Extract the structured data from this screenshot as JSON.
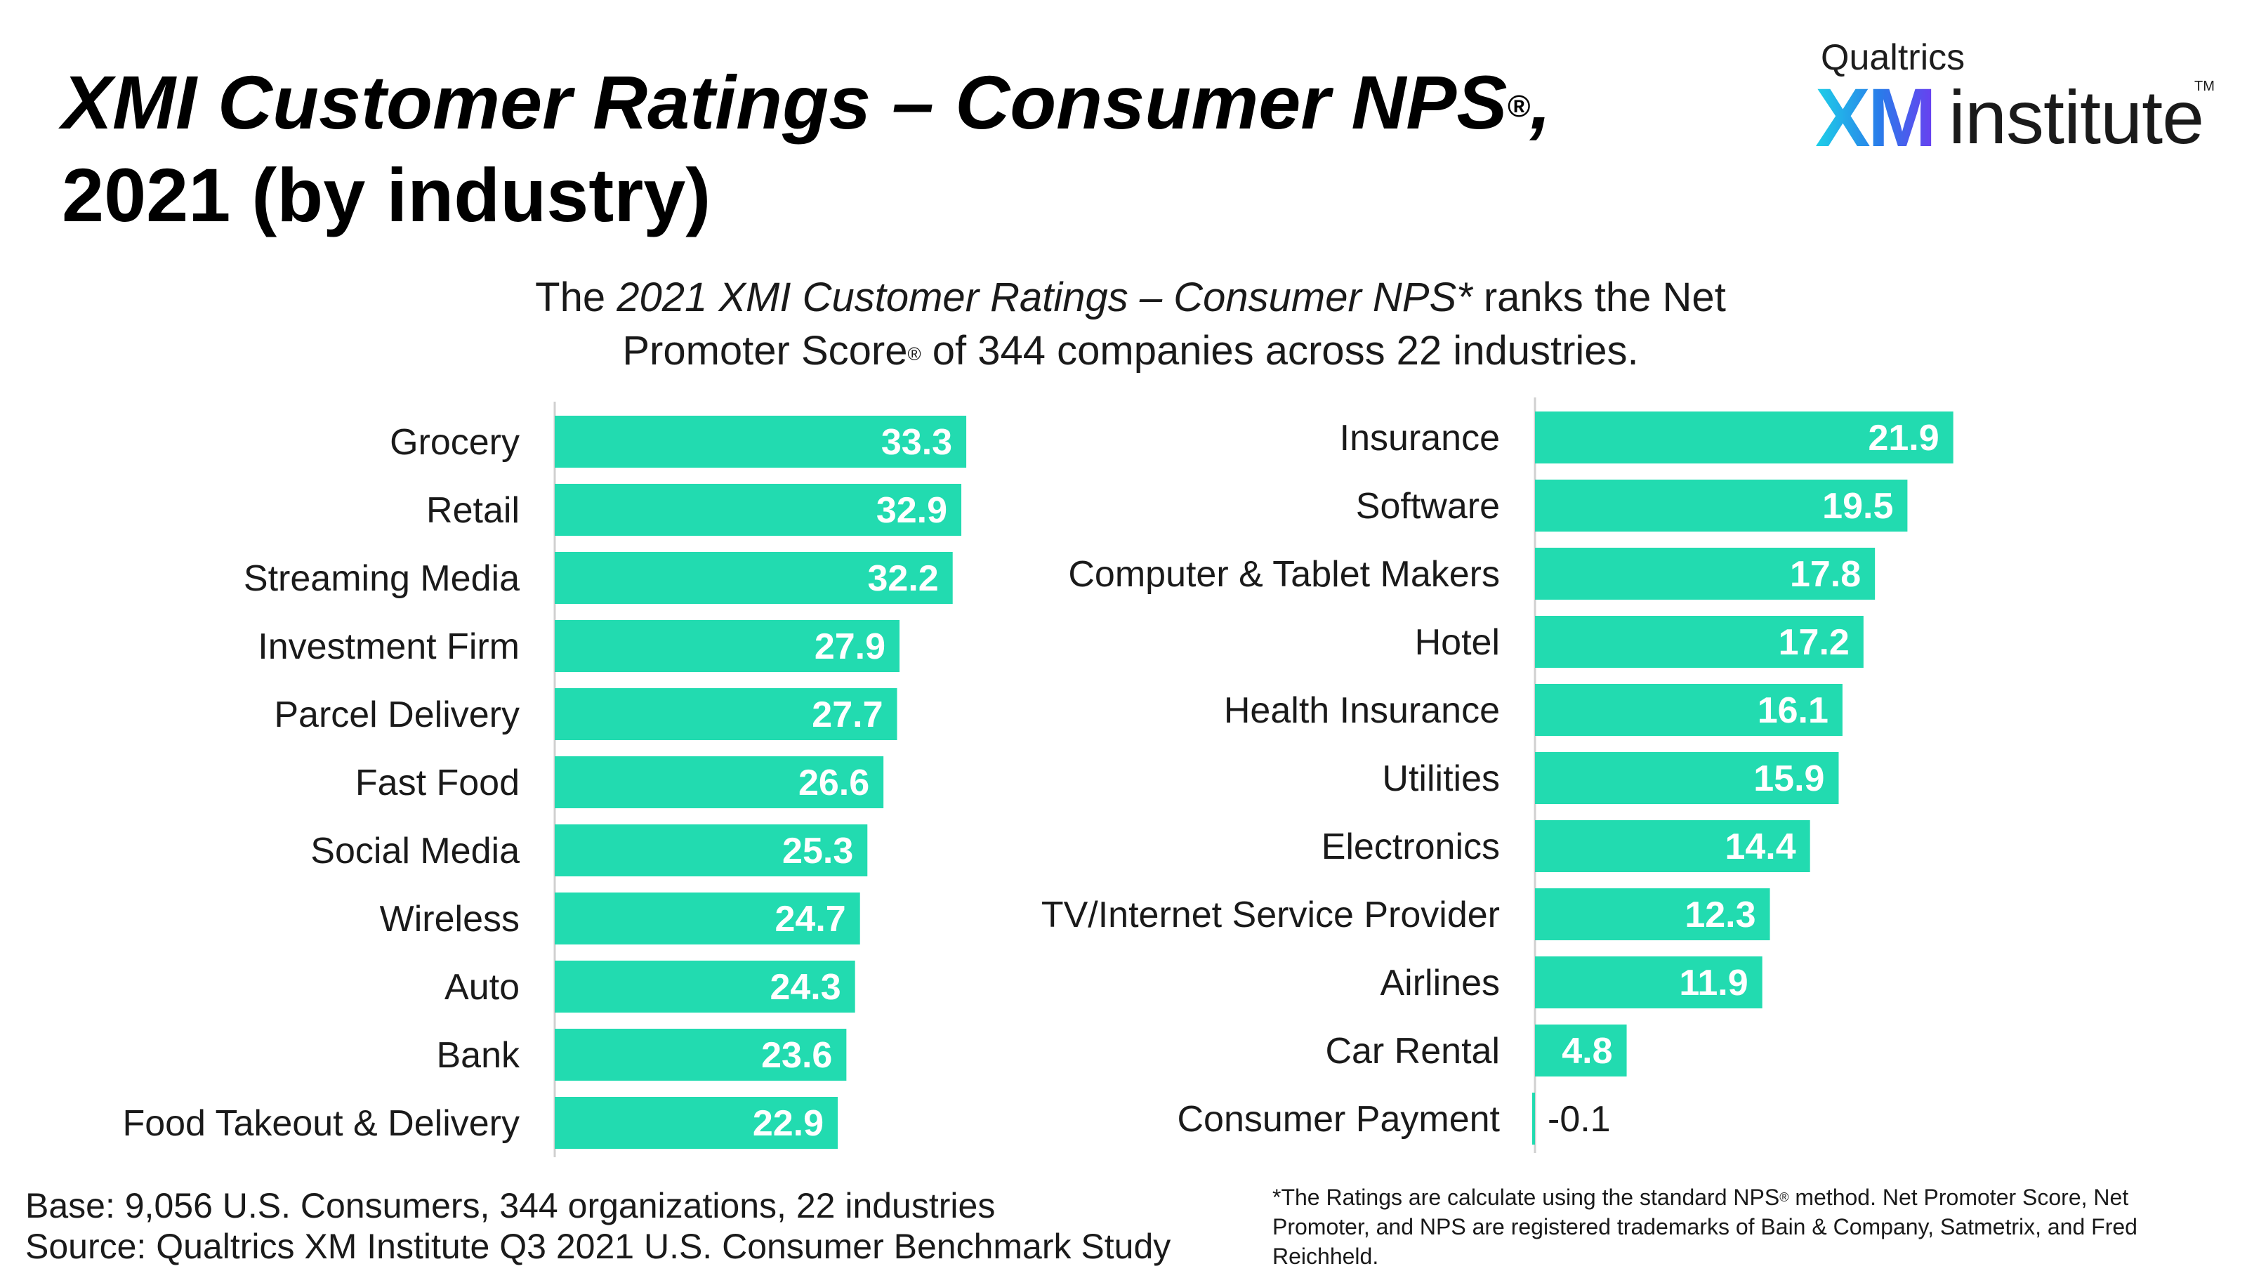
{
  "title": {
    "line1": "XMI Customer Ratings – Consumer NPS",
    "line1_mark": "®",
    "line1_end": ",",
    "line2": "2021 (by industry)"
  },
  "logo": {
    "brand": "Qualtrics",
    "xm": "XM",
    "institute": "institute",
    "tm": "TM"
  },
  "subtitle": {
    "prefix": "The ",
    "italic": "2021 XMI Customer Ratings – Consumer NPS*",
    "suffix": " ranks the Net",
    "line2_a": "Promoter Score",
    "line2_mark": "®",
    "line2_b": " of 344 companies across 22 industries."
  },
  "colors": {
    "bar": "#22dbb0",
    "axis": "#d0d0d0",
    "label_inside": "#ffffff",
    "label_outside": "#1a1a1a"
  },
  "chart_data": [
    {
      "type": "bar",
      "orientation": "horizontal",
      "categories": [
        "Grocery",
        "Retail",
        "Streaming Media",
        "Investment Firm",
        "Parcel Delivery",
        "Fast Food",
        "Social Media",
        "Wireless",
        "Auto",
        "Bank",
        "Food Takeout & Delivery"
      ],
      "values": [
        33.3,
        32.9,
        32.2,
        27.9,
        27.7,
        26.6,
        25.3,
        24.7,
        24.3,
        23.6,
        22.9
      ],
      "labels": [
        "33.3",
        "32.9",
        "32.2",
        "27.9",
        "27.7",
        "26.6",
        "25.3",
        "24.7",
        "24.3",
        "23.6",
        "22.9"
      ]
    },
    {
      "type": "bar",
      "orientation": "horizontal",
      "categories": [
        "Insurance",
        "Software",
        "Computer & Tablet Makers",
        "Hotel",
        "Health Insurance",
        "Utilities",
        "Electronics",
        "TV/Internet Service Provider",
        "Airlines",
        "Car Rental",
        "Consumer Payment"
      ],
      "values": [
        21.9,
        19.5,
        17.8,
        17.2,
        16.1,
        15.9,
        14.4,
        12.3,
        11.9,
        4.8,
        -0.1
      ],
      "labels": [
        "21.9",
        "19.5",
        "17.8",
        "17.2",
        "16.1",
        "15.9",
        "14.4",
        "12.3",
        "11.9",
        "4.8",
        "-0.1"
      ]
    }
  ],
  "footer": {
    "base": "Base: 9,056 U.S. Consumers, 344 organizations, 22 industries",
    "source": "Source: Qualtrics XM Institute Q3 2021 U.S. Consumer Benchmark Study",
    "note_a": "*The Ratings are calculate using the standard NPS",
    "note_mark": "®",
    "note_b": " method. Net Promoter Score, Net Promoter, and NPS are registered trademarks of Bain & Company, Satmetrix, and Fred Reichheld."
  }
}
